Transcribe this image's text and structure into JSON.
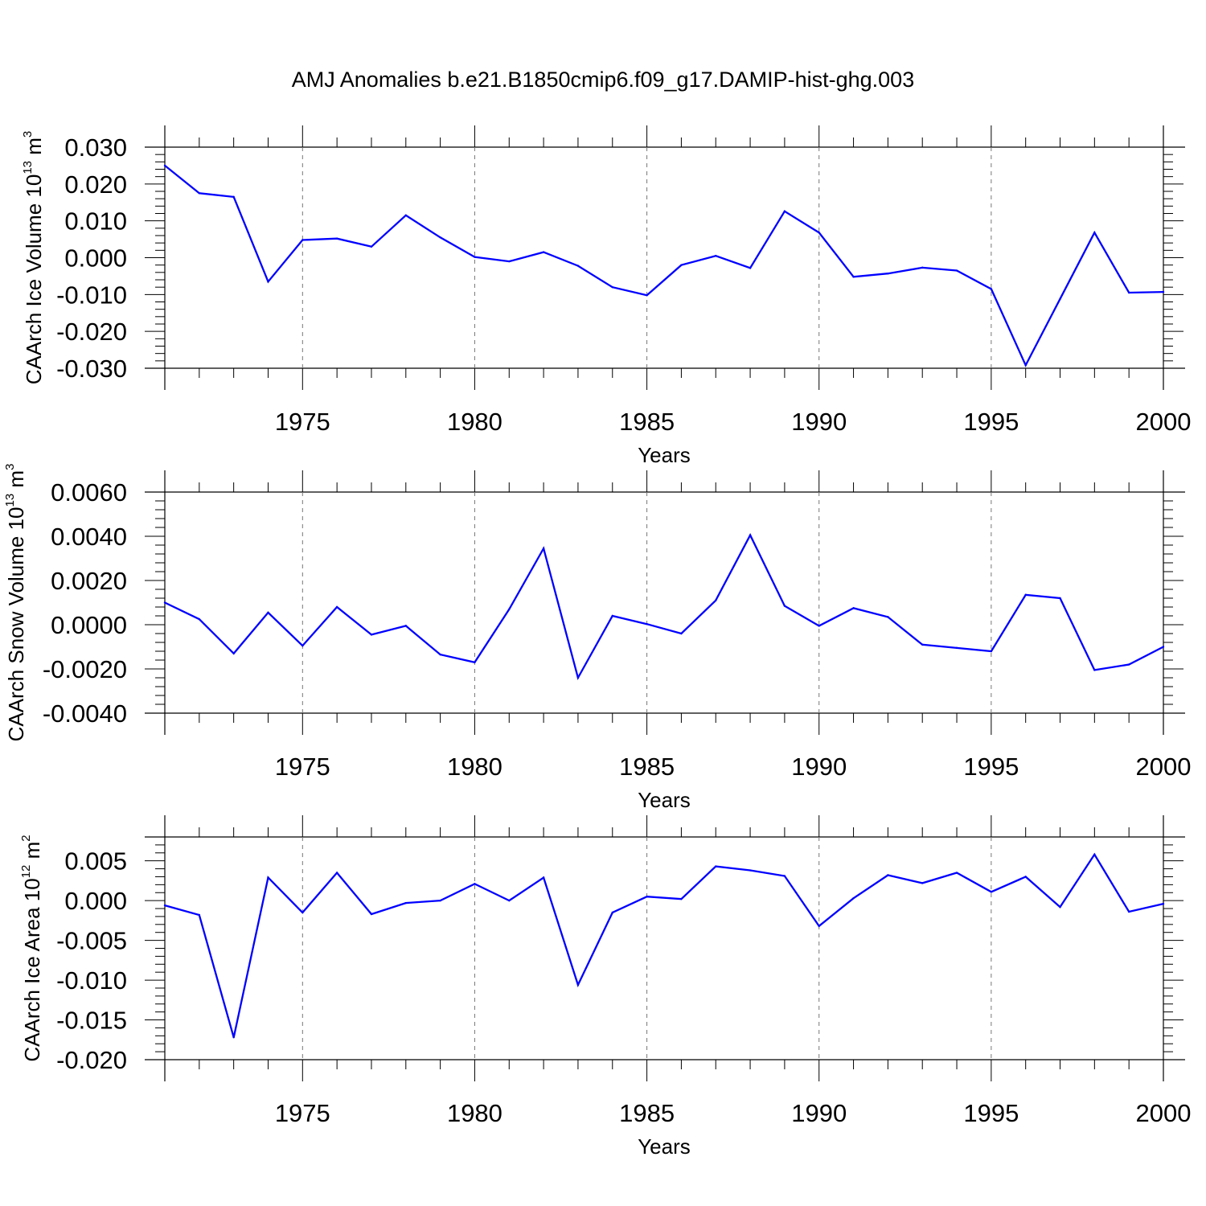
{
  "title": "AMJ Anomalies b.e21.B1850cmip6.f09_g17.DAMIP-hist-ghg.003",
  "line_color": "#0000ff",
  "chart_data": [
    {
      "type": "line",
      "ylabel_main": "CAArch Ice Volume 10",
      "ylabel_exp": "13",
      "ylabel_unit": " m",
      "ylabel_unit_exp": "3",
      "xlabel": "Years",
      "xlim": [
        1971,
        2000
      ],
      "ylim": [
        -0.03,
        0.03
      ],
      "yticks": [
        -0.03,
        -0.02,
        -0.01,
        0.0,
        0.01,
        0.02,
        0.03
      ],
      "ytick_labels": [
        "-0.030",
        "-0.020",
        "-0.010",
        "0.000",
        "0.010",
        "0.020",
        "0.030"
      ],
      "xticks": [
        1975,
        1980,
        1985,
        1990,
        1995,
        2000
      ],
      "xtick_labels": [
        "1975",
        "1980",
        "1985",
        "1990",
        "1995",
        "2000"
      ],
      "x": [
        1971,
        1972,
        1973,
        1974,
        1975,
        1976,
        1977,
        1978,
        1979,
        1980,
        1981,
        1982,
        1983,
        1984,
        1985,
        1986,
        1987,
        1988,
        1989,
        1990,
        1991,
        1992,
        1993,
        1994,
        1995,
        1996,
        1997,
        1998,
        1999,
        2000
      ],
      "values": [
        0.025,
        0.0175,
        0.0165,
        -0.0065,
        0.0048,
        0.0052,
        0.003,
        0.0115,
        0.0055,
        0.0002,
        -0.001,
        0.0015,
        -0.0022,
        -0.008,
        -0.0102,
        -0.002,
        0.0005,
        -0.0028,
        0.0126,
        0.0068,
        -0.0052,
        -0.0043,
        -0.0027,
        -0.0035,
        -0.0085,
        -0.0292,
        -0.0112,
        0.0068,
        -0.0095,
        -0.0093
      ]
    },
    {
      "type": "line",
      "ylabel_main": "CAArch Snow Volume 10",
      "ylabel_exp": "13",
      "ylabel_unit": " m",
      "ylabel_unit_exp": "3",
      "xlabel": "Years",
      "xlim": [
        1971,
        2000
      ],
      "ylim": [
        -0.004,
        0.006
      ],
      "yticks": [
        -0.004,
        -0.002,
        0.0,
        0.002,
        0.004,
        0.006
      ],
      "ytick_labels": [
        "-0.0040",
        "-0.0020",
        "0.0000",
        "0.0020",
        "0.0040",
        "0.0060"
      ],
      "xticks": [
        1975,
        1980,
        1985,
        1990,
        1995,
        2000
      ],
      "xtick_labels": [
        "1975",
        "1980",
        "1985",
        "1990",
        "1995",
        "2000"
      ],
      "x": [
        1971,
        1972,
        1973,
        1974,
        1975,
        1976,
        1977,
        1978,
        1979,
        1980,
        1981,
        1982,
        1983,
        1984,
        1985,
        1986,
        1987,
        1988,
        1989,
        1990,
        1991,
        1992,
        1993,
        1994,
        1995,
        1996,
        1997,
        1998,
        1999,
        2000
      ],
      "values": [
        0.001,
        0.00025,
        -0.0013,
        0.00055,
        -0.00095,
        0.0008,
        -0.00045,
        -5e-05,
        -0.00135,
        -0.0017,
        0.0007,
        0.00345,
        -0.0024,
        0.0004,
        3e-05,
        -0.0004,
        0.0011,
        0.00405,
        0.00085,
        -5e-05,
        0.00075,
        0.00035,
        -0.0009,
        -0.00105,
        -0.0012,
        0.00135,
        0.0012,
        -0.00205,
        -0.0018,
        -0.001
      ]
    },
    {
      "type": "line",
      "ylabel_main": "CAArch Ice Area 10",
      "ylabel_exp": "12",
      "ylabel_unit": " m",
      "ylabel_unit_exp": "2",
      "xlabel": "Years",
      "xlim": [
        1971,
        2000
      ],
      "ylim": [
        -0.02,
        0.008
      ],
      "yticks": [
        -0.02,
        -0.015,
        -0.01,
        -0.005,
        0.0,
        0.005
      ],
      "ytick_labels": [
        "-0.020",
        "-0.015",
        "-0.010",
        "-0.005",
        "0.000",
        "0.005"
      ],
      "xticks": [
        1975,
        1980,
        1985,
        1990,
        1995,
        2000
      ],
      "xtick_labels": [
        "1975",
        "1980",
        "1985",
        "1990",
        "1995",
        "2000"
      ],
      "x": [
        1971,
        1972,
        1973,
        1974,
        1975,
        1976,
        1977,
        1978,
        1979,
        1980,
        1981,
        1982,
        1983,
        1984,
        1985,
        1986,
        1987,
        1988,
        1989,
        1990,
        1991,
        1992,
        1993,
        1994,
        1995,
        1996,
        1997,
        1998,
        1999,
        2000
      ],
      "values": [
        -0.0006,
        -0.0018,
        -0.0172,
        0.0029,
        -0.0015,
        0.0035,
        -0.0017,
        -0.0003,
        0.0,
        0.0021,
        0.0,
        0.0029,
        -0.0106,
        -0.0015,
        0.0005,
        0.0002,
        0.0043,
        0.0038,
        0.0031,
        -0.0032,
        0.0003,
        0.0032,
        0.0022,
        0.0035,
        0.0011,
        0.003,
        -0.0008,
        0.0058,
        -0.0014,
        -0.0004
      ]
    }
  ]
}
